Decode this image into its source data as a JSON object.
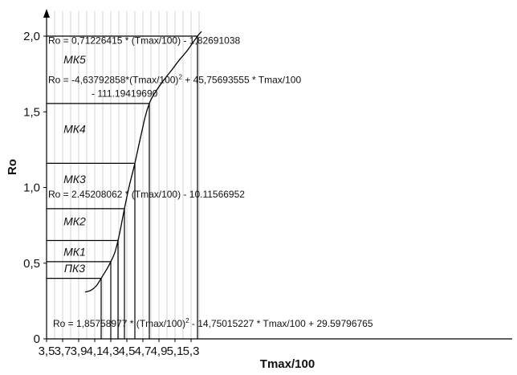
{
  "chart_data": {
    "type": "line",
    "xlabel": "Tmax/100",
    "ylabel": "Ro",
    "xlim": [
      3.5,
      5.45
    ],
    "ylim": [
      0,
      2.1
    ],
    "x_ticks": [
      "3,5",
      "3,7",
      "3,9",
      "4,1",
      "4,3",
      "4,5",
      "4,7",
      "4,9",
      "5,1",
      "5,3"
    ],
    "x_tick_values": [
      3.5,
      3.7,
      3.9,
      4.1,
      4.3,
      4.5,
      4.7,
      4.9,
      5.1,
      5.3
    ],
    "y_ticks": [
      "0",
      "0,5",
      "1,0",
      "1,5",
      "2,0"
    ],
    "y_tick_values": [
      0,
      0.5,
      1.0,
      1.5,
      2.0
    ],
    "x_grid": [
      3.6,
      3.8,
      4.0,
      4.2,
      4.4,
      4.6,
      4.8,
      5.0,
      5.2,
      5.4
    ],
    "curve": {
      "x": [
        3.98,
        4.05,
        4.12,
        4.18,
        4.25,
        4.3,
        4.35,
        4.39,
        4.43,
        4.47,
        4.53,
        4.6,
        4.67,
        4.73,
        4.78,
        4.82,
        4.88,
        4.96,
        5.05,
        5.15,
        5.26,
        5.38,
        5.43
      ],
      "y": [
        0.31,
        0.32,
        0.35,
        0.4,
        0.46,
        0.51,
        0.57,
        0.65,
        0.75,
        0.86,
        1.01,
        1.16,
        1.33,
        1.47,
        1.555,
        1.6,
        1.65,
        1.71,
        1.77,
        1.84,
        1.91,
        2.0,
        2.03
      ]
    },
    "reference_points": [
      {
        "x": 4.18,
        "y": 0.4
      },
      {
        "x": 4.3,
        "y": 0.51
      },
      {
        "x": 4.39,
        "y": 0.65
      },
      {
        "x": 4.47,
        "y": 0.86
      },
      {
        "x": 4.6,
        "y": 1.16
      },
      {
        "x": 4.78,
        "y": 1.555
      },
      {
        "x": 5.38,
        "y": 2.0
      }
    ],
    "zone_labels": [
      {
        "text": "ПК3",
        "x": 3.85,
        "y": 0.44
      },
      {
        "text": "МК1",
        "x": 3.85,
        "y": 0.55
      },
      {
        "text": "МК2",
        "x": 3.85,
        "y": 0.75
      },
      {
        "text": "МК3",
        "x": 3.85,
        "y": 1.03
      },
      {
        "text": "МК4",
        "x": 3.85,
        "y": 1.36
      },
      {
        "text": "МК5",
        "x": 3.85,
        "y": 1.82
      }
    ],
    "equations": [
      {
        "x": 3.52,
        "y": 1.95,
        "parts": [
          {
            "t": "Ro = 0,71226415 * (Tmax/100) - 1,82691038"
          }
        ]
      },
      {
        "x": 3.52,
        "y": 1.69,
        "parts": [
          {
            "t": "Ro = -4,63792858*(Tmax/100)"
          },
          {
            "t": "2",
            "sup": true
          },
          {
            "t": " + 45,75693555 * Tmax/100"
          }
        ]
      },
      {
        "x": 4.06,
        "y": 1.6,
        "parts": [
          {
            "t": "- 111.19419690"
          }
        ]
      },
      {
        "x": 3.52,
        "y": 0.935,
        "parts": [
          {
            "t": "Ro = 2.45208062 * (Tmax/100) - 10.11566952"
          }
        ]
      },
      {
        "x": 3.58,
        "y": 0.08,
        "parts": [
          {
            "t": "Ro = 1,85758977 * (Tmax/100)"
          },
          {
            "t": "2",
            "sup": true
          },
          {
            "t": " - 14,75015227 * Tmax/100 + 29.59796765"
          }
        ]
      }
    ]
  }
}
